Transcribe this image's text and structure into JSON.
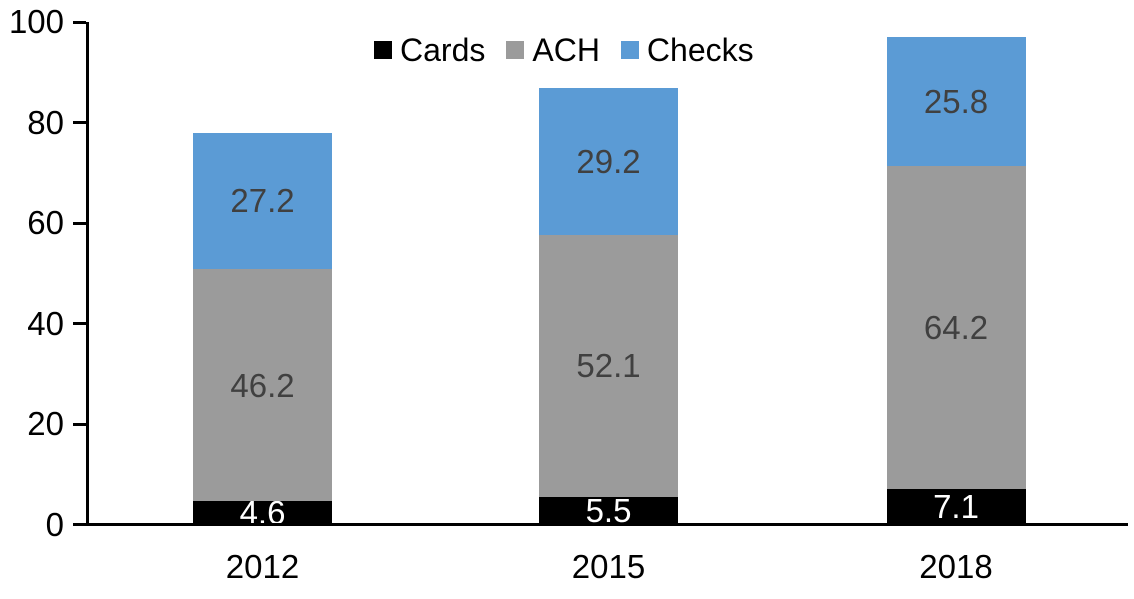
{
  "chart_data": {
    "type": "bar",
    "stacked": true,
    "title": "",
    "xlabel": "",
    "ylabel": "",
    "categories": [
      "2012",
      "2015",
      "2018"
    ],
    "series": [
      {
        "name": "Cards",
        "color": "#000000",
        "label_color": "#FFFFFF",
        "values": [
          4.6,
          5.5,
          7.1
        ]
      },
      {
        "name": "ACH",
        "color": "#9B9B9B",
        "label_color": "#404040",
        "values": [
          46.2,
          52.1,
          64.2
        ]
      },
      {
        "name": "Checks",
        "color": "#5B9BD5",
        "label_color": "#404040",
        "values": [
          27.2,
          29.2,
          25.8
        ]
      }
    ],
    "ylim": [
      0,
      100
    ],
    "yticks": [
      0,
      20,
      40,
      60,
      80,
      100
    ],
    "grid": false,
    "legend_position": "top-center",
    "axis_color": "#000000",
    "tick_label_color": "#000000"
  }
}
